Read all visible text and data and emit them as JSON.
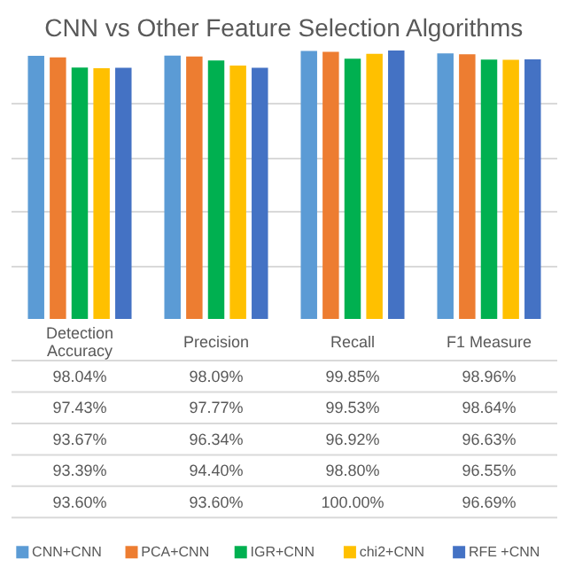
{
  "chart_data": {
    "type": "bar",
    "title": "CNN vs Other Feature Selection Algorithms",
    "categories": [
      "Detection Accuracy",
      "Precision",
      "Recall",
      "F1 Measure"
    ],
    "series": [
      {
        "name": "CNN+CNN",
        "color": "#5b9bd5",
        "values": [
          98.04,
          98.09,
          99.85,
          98.96
        ],
        "value_labels": [
          "98.04%",
          "98.09%",
          "99.85%",
          "98.96%"
        ]
      },
      {
        "name": "PCA+CNN",
        "color": "#ed7d31",
        "values": [
          97.43,
          97.77,
          99.53,
          98.64
        ],
        "value_labels": [
          "97.43%",
          "97.77%",
          "99.53%",
          "98.64%"
        ]
      },
      {
        "name": "IGR+CNN",
        "color": "#00b050",
        "values": [
          93.67,
          96.34,
          96.92,
          96.63
        ],
        "value_labels": [
          "93.67%",
          "96.34%",
          "96.92%",
          "96.63%"
        ]
      },
      {
        "name": "chi2+CNN",
        "color": "#ffc000",
        "values": [
          93.39,
          94.4,
          98.8,
          96.55
        ],
        "value_labels": [
          "93.39%",
          "94.40%",
          "98.80%",
          "96.55%"
        ]
      },
      {
        "name": "RFE +CNN",
        "color": "#4472c4",
        "values": [
          93.6,
          93.6,
          100.0,
          96.69
        ],
        "value_labels": [
          "93.60%",
          "93.60%",
          "100.00%",
          "96.69%"
        ]
      }
    ],
    "grid": "y",
    "legend": "bottom"
  }
}
